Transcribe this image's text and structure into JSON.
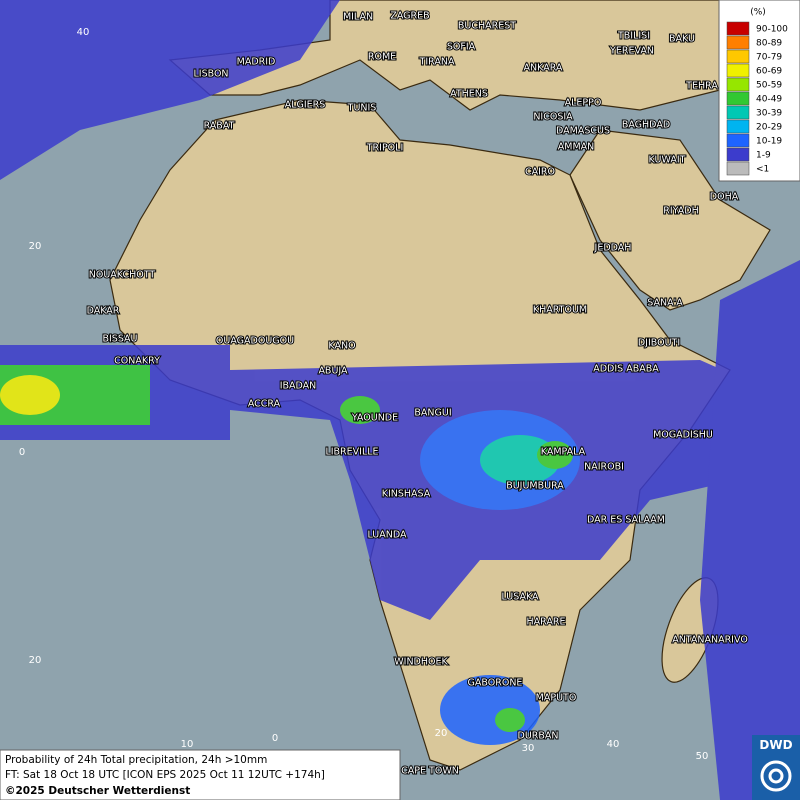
{
  "map": {
    "cities": [
      "MILAN",
      "ZAGREB",
      "BUCHAREST",
      "TBILISI",
      "BAKU",
      "MADRID",
      "ROME",
      "SOFIA",
      "YEREVAN",
      "LISBON",
      "TIRANA",
      "ANKARA",
      "TEHRA",
      "ATHENS",
      "ALGIERS",
      "TUNIS",
      "ALEPPO",
      "RABAT",
      "NICOSIA",
      "BAGHDAD",
      "DAMASCUS",
      "TRIPOLI",
      "AMMAN",
      "KUWAIT",
      "CAIRO",
      "DOHA",
      "RIYADH",
      "JEDDAH",
      "NOUAKCHOTT",
      "SANA'A",
      "KHARTOUM",
      "DAKAR",
      "BISSAU",
      "OUAGADOUGOU",
      "DJIBOUTI",
      "KANO",
      "CONAKRY",
      "ABUJA",
      "ADDIS ABABA",
      "IBADAN",
      "ACCRA",
      "YAOUNDE",
      "BANGUI",
      "MOGADISHU",
      "LIBREVILLE",
      "KAMPALA",
      "NAIROBI",
      "BUJUMBURA",
      "KINSHASA",
      "DAR ES SALAAM",
      "LUANDA",
      "LUSAKA",
      "HARARE",
      "ANTANANARIVO",
      "WINDHOEK",
      "GABORONE",
      "MAPUTO",
      "DURBAN",
      "CAPE TOWN"
    ],
    "grid_labels": [
      "40",
      "20",
      "0",
      "20",
      "0",
      "10",
      "20",
      "30",
      "40",
      "50"
    ]
  },
  "legend": {
    "title": "(%)",
    "items": [
      {
        "label": "90-100",
        "color": "#c80000"
      },
      {
        "label": "80-89",
        "color": "#ff7f00"
      },
      {
        "label": "70-79",
        "color": "#ffc800"
      },
      {
        "label": "60-69",
        "color": "#f0f000"
      },
      {
        "label": "50-59",
        "color": "#96e600"
      },
      {
        "label": "40-49",
        "color": "#32c832"
      },
      {
        "label": "30-39",
        "color": "#00c8b4"
      },
      {
        "label": "20-29",
        "color": "#00b4f0"
      },
      {
        "label": "10-19",
        "color": "#1e64ff"
      },
      {
        "label": "1-9",
        "color": "#3c3ccc"
      },
      {
        "label": "<1",
        "color": "#bbbbbb"
      }
    ]
  },
  "caption": {
    "line1": "Probability of 24h Total precipitation, 24h >10mm",
    "line2": "FT: Sat 18 Oct 18 UTC [ICON EPS 2025 Oct 11 12UTC +174h]",
    "line3": "©2025 Deutscher Wetterdienst"
  },
  "logo": "DWD"
}
